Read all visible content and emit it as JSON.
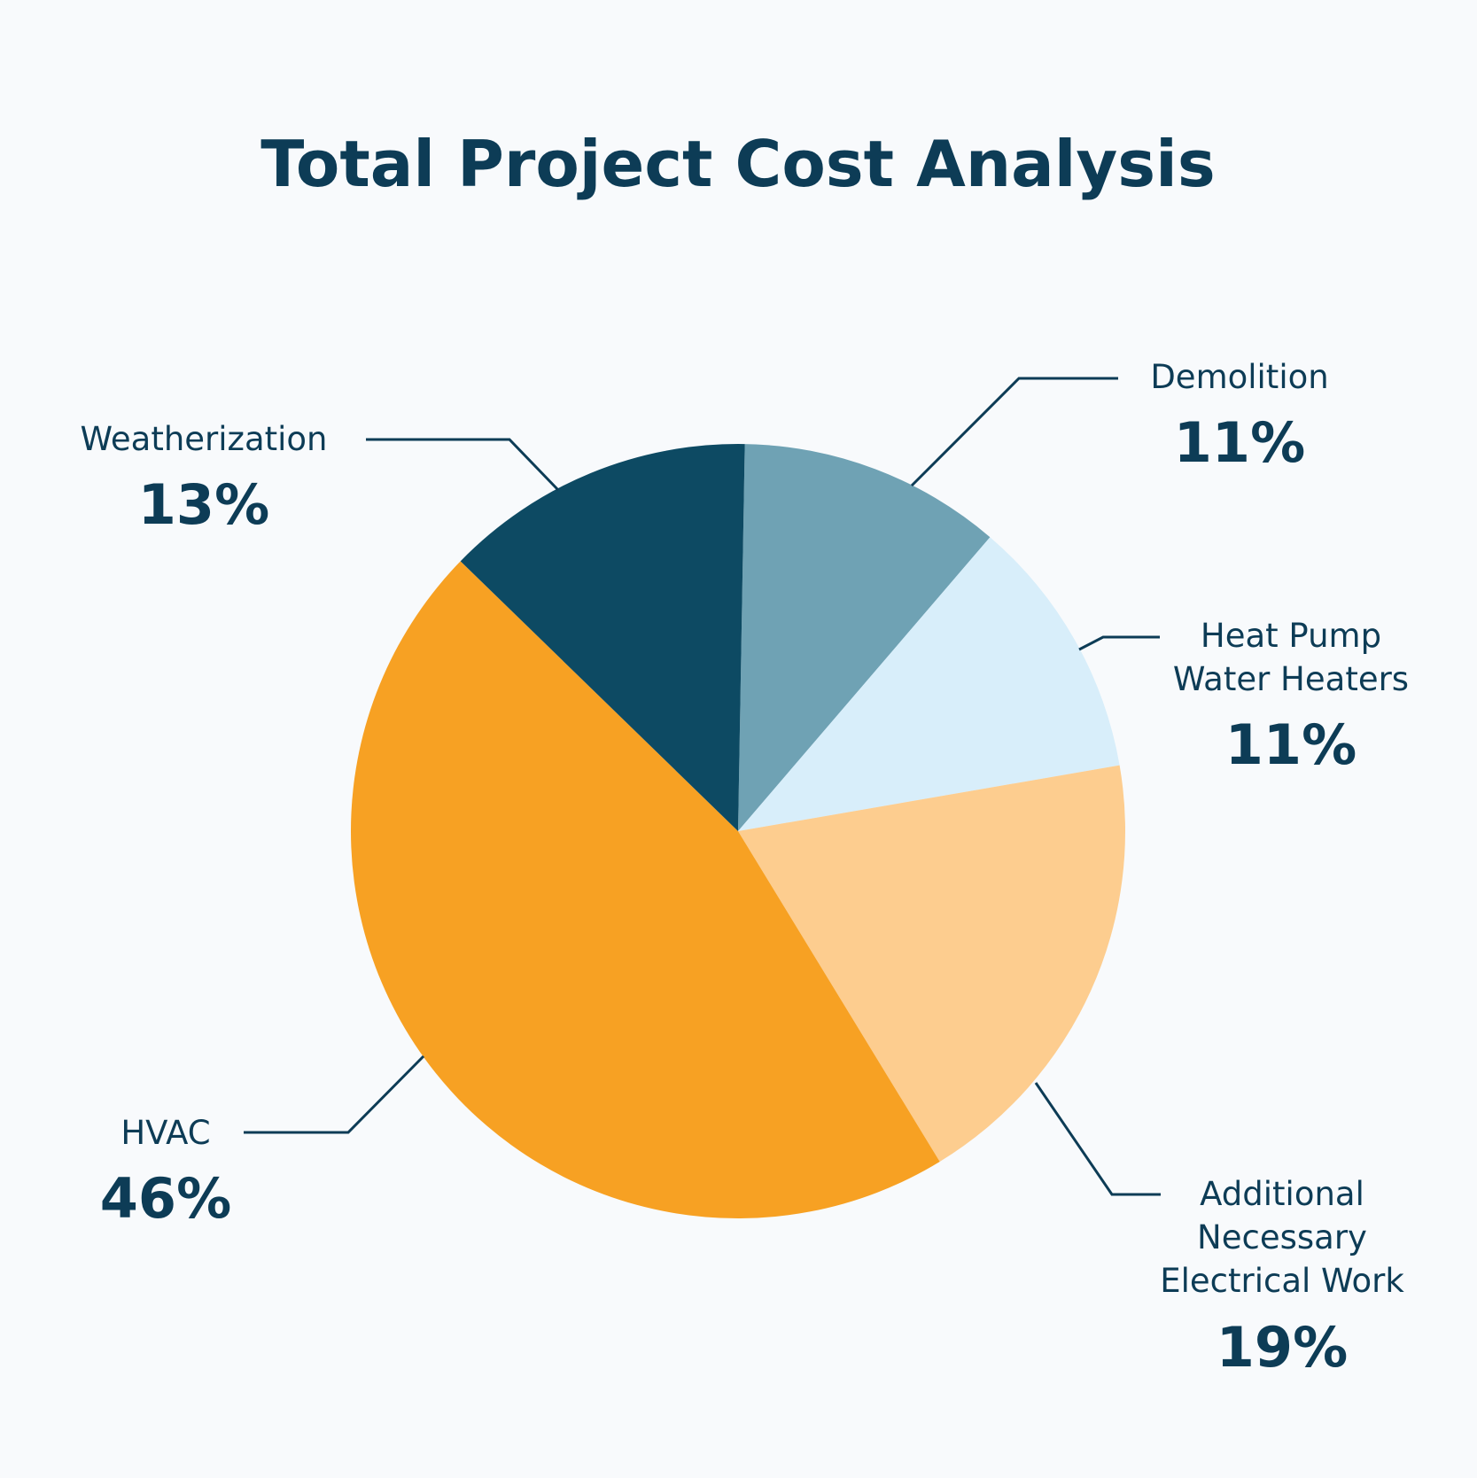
{
  "chart_data": {
    "type": "pie",
    "title": "Total Project Cost Analysis",
    "slices": [
      {
        "label": "Weatherization",
        "value": 13,
        "value_label": "13%",
        "color": "#0d4a63"
      },
      {
        "label": "Demolition",
        "value": 11,
        "value_label": "11%",
        "color": "#6fa2b4"
      },
      {
        "label": "Heat Pump Water Heaters",
        "value": 11,
        "value_label": "11%",
        "color": "#d8eefa"
      },
      {
        "label": "Additional Necessary Electrical Work",
        "value": 19,
        "value_label": "19%",
        "color": "#fdcd8f"
      },
      {
        "label": "HVAC",
        "value": 46,
        "value_label": "46%",
        "color": "#f7a123"
      }
    ],
    "text_color": "#0d3c56",
    "leader_color": "#0d3c56",
    "background": "#f8fafc"
  }
}
